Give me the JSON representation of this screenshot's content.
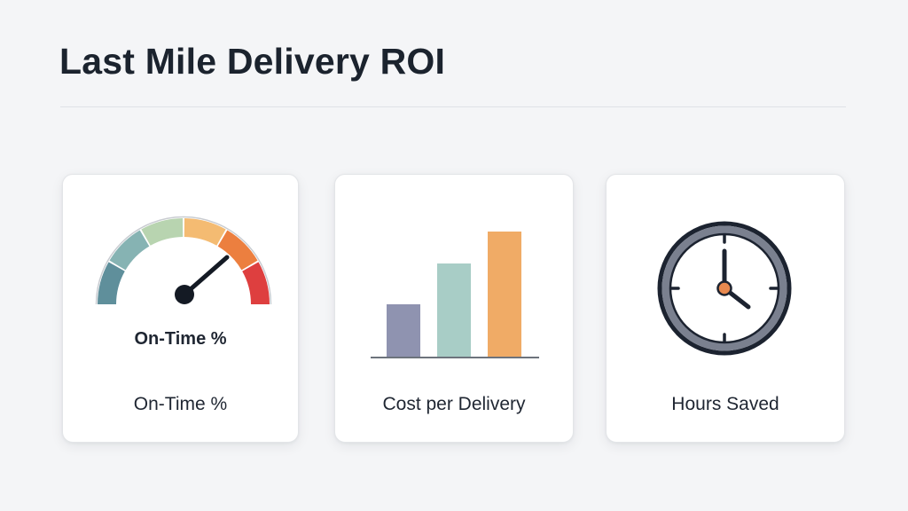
{
  "header": {
    "title": "Last Mile Delivery ROI"
  },
  "cards": [
    {
      "gauge_caption": "On-Time %",
      "label": "On-Time %",
      "icon": "gauge-icon",
      "gauge_segment_colors": [
        "#5f8f9b",
        "#86b3b3",
        "#b8d4b0",
        "#f4bb72",
        "#ec7f3f",
        "#de3f3f"
      ]
    },
    {
      "label": "Cost per Delivery",
      "icon": "bar-chart-icon",
      "bar_colors": [
        "#8f93b0",
        "#a8cdc6",
        "#f0ab66"
      ]
    },
    {
      "label": "Hours Saved",
      "icon": "clock-icon",
      "accent_color": "#e8894f"
    }
  ]
}
